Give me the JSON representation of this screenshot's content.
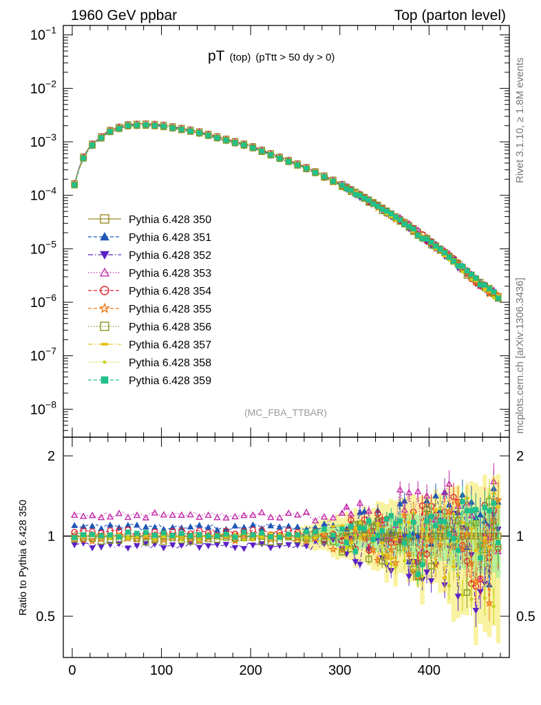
{
  "header": {
    "left": "1960 GeV ppbar",
    "right": "Top (parton level)"
  },
  "side_labels": {
    "rivet": "Rivet 3.1.10, ≥ 1.8M events",
    "mcplots": "mcplots.cern.ch [arXiv:1306.3436]"
  },
  "chart_data": [
    {
      "panel": "main",
      "type": "line",
      "title_main": "pT",
      "title_sub1": "(top)",
      "title_sub2": "(pTtt > 50 dy > 0)",
      "analysis_label": "(MC_FBA_TTBAR)",
      "xlabel": "",
      "ylabel": "",
      "xlim": [
        -10,
        490
      ],
      "ylim": [
        3e-09,
        0.15
      ],
      "yscale": "log",
      "ytick_labels": [
        {
          "base": "10",
          "exp": "−1",
          "value": 0.1
        },
        {
          "base": "10",
          "exp": "−2",
          "value": 0.01
        },
        {
          "base": "10",
          "exp": "−3",
          "value": 0.001
        },
        {
          "base": "10",
          "exp": "−4",
          "value": 0.0001
        },
        {
          "base": "10",
          "exp": "−5",
          "value": 1e-05
        },
        {
          "base": "10",
          "exp": "−6",
          "value": 1e-06
        },
        {
          "base": "10",
          "exp": "−7",
          "value": 1e-07
        },
        {
          "base": "10",
          "exp": "−8",
          "value": 1e-08
        }
      ],
      "reference_curve": {
        "x": [
          0,
          10,
          20,
          40,
          60,
          80,
          100,
          140,
          200,
          260,
          300,
          340,
          380,
          420,
          450,
          480
        ],
        "y": [
          0.00012,
          0.00045,
          0.00085,
          0.0016,
          0.0021,
          0.0022,
          0.0021,
          0.0016,
          0.00085,
          0.00035,
          0.00017,
          7e-05,
          2.6e-05,
          8e-06,
          3e-06,
          1.2e-06
        ]
      },
      "series": [
        {
          "name": "Pythia 6.428 350",
          "color": "#9a8a22",
          "marker": "square-open",
          "dash": "solid",
          "ratio": 1.0
        },
        {
          "name": "Pythia 6.428 351",
          "color": "#1f57b8",
          "marker": "triangle-up",
          "dash": "dashed",
          "ratio": 1.08
        },
        {
          "name": "Pythia 6.428 352",
          "color": "#5b22c6",
          "marker": "triangle-down",
          "dash": "dashdot",
          "ratio": 0.92
        },
        {
          "name": "Pythia 6.428 353",
          "color": "#c228a8",
          "marker": "triangle-up-open",
          "dash": "dotted",
          "ratio": 1.2
        },
        {
          "name": "Pythia 6.428 354",
          "color": "#e0222b",
          "marker": "circle-open",
          "dash": "dashed",
          "ratio": 1.03
        },
        {
          "name": "Pythia 6.428 355",
          "color": "#f07a1a",
          "marker": "star-open",
          "dash": "dashed",
          "ratio": 0.98
        },
        {
          "name": "Pythia 6.428 356",
          "color": "#7f9a1c",
          "marker": "square-open",
          "dash": "dotted",
          "ratio": 0.97
        },
        {
          "name": "Pythia 6.428 357",
          "color": "#e6c21a",
          "marker": "dash",
          "dash": "dashdot",
          "ratio": 1.0
        },
        {
          "name": "Pythia 6.428 358",
          "color": "#c8d21a",
          "marker": "dot",
          "dash": "dotted",
          "ratio": 0.99
        },
        {
          "name": "Pythia 6.428 359",
          "color": "#22c08a",
          "marker": "square",
          "dash": "dashed",
          "ratio": 1.01
        }
      ]
    },
    {
      "panel": "ratio",
      "type": "line",
      "ylabel": "Ratio to Pythia 6.428 350",
      "xlabel": "",
      "xlim": [
        -10,
        490
      ],
      "ylim": [
        0.35,
        2.35
      ],
      "x_ticks": [
        0,
        100,
        200,
        300,
        400
      ],
      "x_tick_labels": [
        "0",
        "100",
        "200",
        "300",
        "400"
      ],
      "y_ticks": [
        0.5,
        1,
        2
      ],
      "y_tick_labels": [
        "0.5",
        "1",
        "2"
      ]
    }
  ]
}
